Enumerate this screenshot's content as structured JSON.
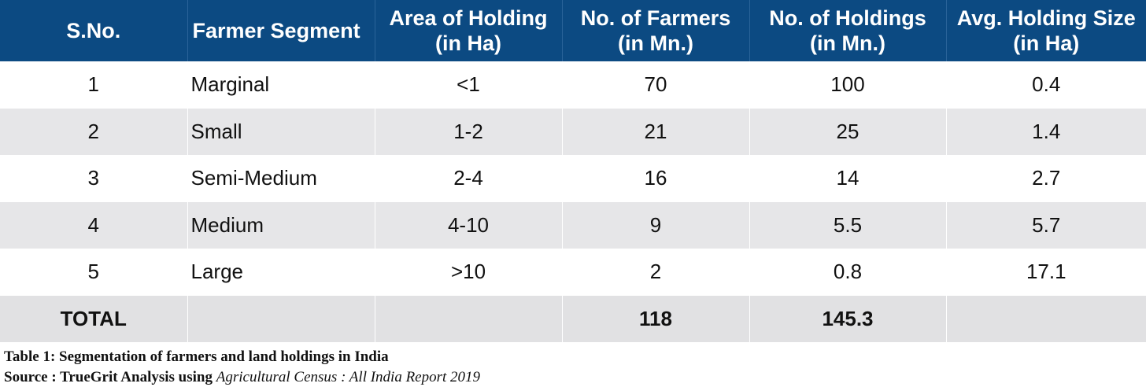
{
  "table": {
    "headers": [
      {
        "line1": "S.No.",
        "line2": ""
      },
      {
        "line1": "Farmer Segment",
        "line2": ""
      },
      {
        "line1": "Area of Holding",
        "line2": "(in Ha)"
      },
      {
        "line1": "No. of Farmers",
        "line2": "(in Mn.)"
      },
      {
        "line1": "No. of Holdings",
        "line2": "(in Mn.)"
      },
      {
        "line1": "Avg. Holding Size",
        "line2": "(in Ha)"
      }
    ],
    "rows": [
      {
        "sno": "1",
        "segment": "Marginal",
        "area": "<1",
        "farmers": "70",
        "holdings": "100",
        "avg": "0.4"
      },
      {
        "sno": "2",
        "segment": "Small",
        "area": "1-2",
        "farmers": "21",
        "holdings": "25",
        "avg": "1.4"
      },
      {
        "sno": "3",
        "segment": "Semi-Medium",
        "area": "2-4",
        "farmers": "16",
        "holdings": "14",
        "avg": "2.7"
      },
      {
        "sno": "4",
        "segment": "Medium",
        "area": "4-10",
        "farmers": "9",
        "holdings": "5.5",
        "avg": "5.7"
      },
      {
        "sno": "5",
        "segment": "Large",
        "area": ">10",
        "farmers": "2",
        "holdings": "0.8",
        "avg": "17.1"
      }
    ],
    "total": {
      "label": "TOTAL",
      "segment": "",
      "area": "",
      "farmers": "118",
      "holdings": "145.3",
      "avg": ""
    }
  },
  "caption": {
    "title": "Table 1: Segmentation of farmers and land holdings in India",
    "source_prefix": "Source : TrueGrit Analysis using ",
    "source_italic": "Agricultural Census : All India Report 2019"
  },
  "colors": {
    "header_bg": "#0c4a82",
    "header_text": "#ffffff",
    "row_alt_bg": "#e6e6e8",
    "total_bg": "#e1e1e3"
  }
}
